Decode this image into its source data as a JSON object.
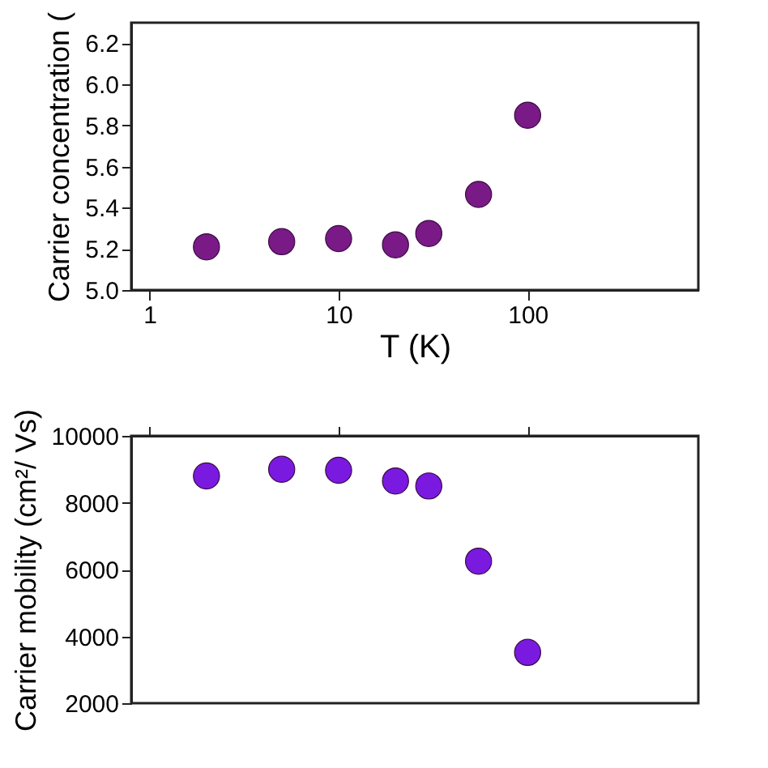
{
  "chart_data": [
    {
      "type": "scatter",
      "xlabel": "T (K)",
      "ylabel": "Carrier concentration (",
      "log": "x",
      "marker": "circle",
      "grid": false,
      "xlim": [
        0.8,
        800
      ],
      "xticks": [
        1,
        10,
        100
      ],
      "ylim": [
        5.0,
        6.3
      ],
      "yticks": [
        {
          "value": 5.0,
          "label": "5.0"
        },
        5.2,
        5.4,
        5.6,
        5.8,
        {
          "value": 6.0,
          "label": "6.0"
        },
        6.2
      ],
      "x": [
        2,
        5,
        10,
        20,
        30,
        55,
        100
      ],
      "series": [
        {
          "color": "#7a1a86",
          "values": [
            5.21,
            5.235,
            5.25,
            5.22,
            5.275,
            5.465,
            5.85
          ]
        }
      ]
    },
    {
      "type": "scatter",
      "ylabel": "Carrier mobility (cm²/ Vs)",
      "log": "x",
      "marker": "circle",
      "grid": false,
      "tick_labels": "y",
      "xlim": [
        0.8,
        800
      ],
      "xticks": [
        1,
        10,
        100
      ],
      "ylim": [
        2000,
        10000
      ],
      "yticks": [
        2000,
        4000,
        6000,
        8000,
        10000
      ],
      "x": [
        2,
        5,
        10,
        20,
        30,
        55,
        100
      ],
      "series": [
        {
          "color": "#7a1ae0",
          "values": [
            8800,
            9000,
            8970,
            8650,
            8500,
            6250,
            3520
          ]
        }
      ]
    }
  ]
}
